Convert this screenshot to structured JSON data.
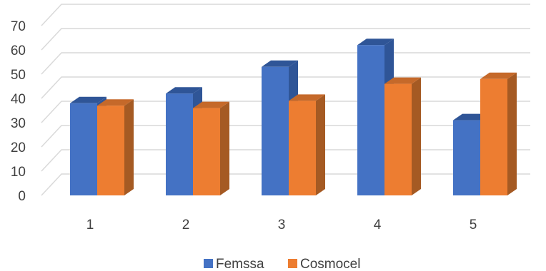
{
  "chart_data": {
    "type": "bar",
    "style": "3d-clustered-column",
    "title": "",
    "xlabel": "",
    "ylabel": "",
    "categories": [
      "1",
      "2",
      "3",
      "4",
      "5"
    ],
    "series": [
      {
        "name": "Femssa",
        "values": [
          38,
          42,
          53,
          62,
          31
        ],
        "color": "#4472C4",
        "side_color": "#2F5597",
        "top_color": "#2F5597"
      },
      {
        "name": "Cosmocel",
        "values": [
          37,
          36,
          39,
          46,
          48
        ],
        "color": "#ED7D31",
        "side_color": "#A55A23",
        "top_color": "#C5692A"
      }
    ],
    "ylim": [
      0,
      70
    ],
    "yticks": [
      "0",
      "10",
      "20",
      "30",
      "40",
      "50",
      "60",
      "70"
    ],
    "grid": true,
    "grid_color": "#D9D9D9",
    "legend_position": "bottom"
  }
}
